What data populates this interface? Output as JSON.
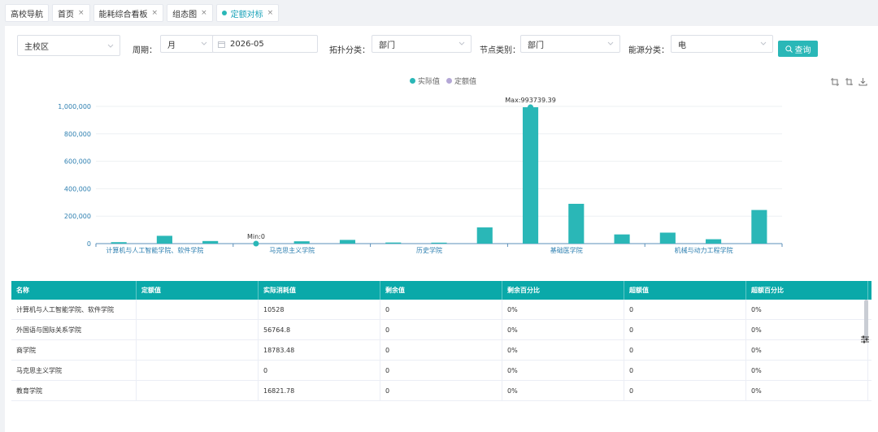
{
  "tabs": [
    {
      "label": "高校导航",
      "closable": false,
      "active": false
    },
    {
      "label": "首页",
      "closable": true,
      "active": false
    },
    {
      "label": "能耗综合看板",
      "closable": true,
      "active": false
    },
    {
      "label": "组态图",
      "closable": true,
      "active": false
    },
    {
      "label": "定额对标",
      "closable": true,
      "active": true
    }
  ],
  "filters": {
    "campus": "主校区",
    "period_label": "周期：",
    "period_value": "月",
    "date_value": "2026-05",
    "topology_label": "拓扑分类：",
    "topology_value": "部门",
    "node_label": "节点类别：",
    "node_value": "部门",
    "energy_label": "能源分类：",
    "energy_value": "电",
    "search_label": "查询"
  },
  "colors": {
    "accent": "#2ab7b7",
    "quota": "#b4a7d6",
    "header": "#0aa9a9"
  },
  "chart_data": {
    "type": "bar",
    "legend": [
      "实际值",
      "定额值"
    ],
    "x_tick_labels": [
      "计算机与人工智能学院、软件学院",
      "马克思主义学院",
      "历史学院",
      "基础医学院",
      "机械与动力工程学院"
    ],
    "y_ticks": [
      "0",
      "200,000",
      "400,000",
      "600,000",
      "800,000",
      "1,000,000"
    ],
    "ylim": [
      0,
      1000000
    ],
    "actual_values": [
      10528,
      56764.8,
      18783.48,
      0,
      16821.78,
      27000,
      8000,
      7000,
      118000,
      993739.39,
      290000,
      67000,
      80000,
      32000,
      245000
    ],
    "max_label": "Max:993739.39",
    "min_label": "Min:0",
    "max_index": 9,
    "min_index": 3
  },
  "table": {
    "columns": [
      "名称",
      "定额值",
      "实际消耗值",
      "剩余值",
      "剩余百分比",
      "超额值",
      "超额百分比"
    ],
    "rows": [
      [
        "计算机与人工智能学院、软件学院",
        "",
        "10528",
        "0",
        "0%",
        "0",
        "0%"
      ],
      [
        "外国语与国际关系学院",
        "",
        "56764.8",
        "0",
        "0%",
        "0",
        "0%"
      ],
      [
        "商学院",
        "",
        "18783.48",
        "0",
        "0%",
        "0",
        "0%"
      ],
      [
        "马克思主义学院",
        "",
        "0",
        "0",
        "0%",
        "0",
        "0%"
      ],
      [
        "教育学院",
        "",
        "16821.78",
        "0",
        "0%",
        "0",
        "0%"
      ]
    ]
  }
}
